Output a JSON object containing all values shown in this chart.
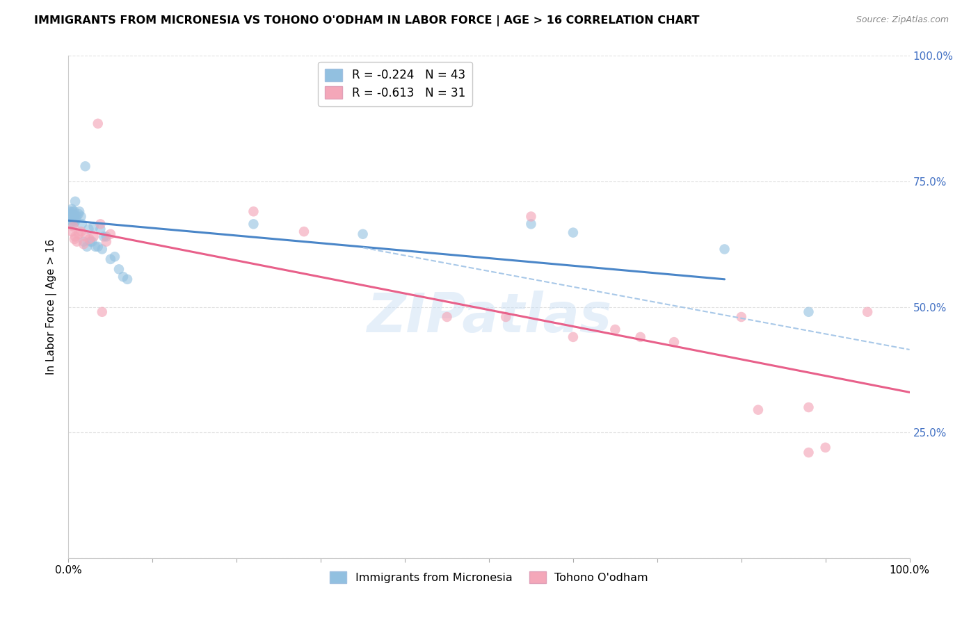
{
  "title": "IMMIGRANTS FROM MICRONESIA VS TOHONO O'ODHAM IN LABOR FORCE | AGE > 16 CORRELATION CHART",
  "source": "Source: ZipAtlas.com",
  "ylabel": "In Labor Force | Age > 16",
  "xlim": [
    0.0,
    1.0
  ],
  "ylim": [
    0.0,
    1.0
  ],
  "ytick_labels": [
    "",
    "25.0%",
    "50.0%",
    "75.0%",
    "100.0%"
  ],
  "ytick_values": [
    0.0,
    0.25,
    0.5,
    0.75,
    1.0
  ],
  "xtick_values": [
    0.0,
    0.1,
    0.2,
    0.3,
    0.4,
    0.5,
    0.6,
    0.7,
    0.8,
    0.9,
    1.0
  ],
  "blue_color": "#92c0e0",
  "pink_color": "#f4a7b9",
  "blue_line_color": "#4a86c8",
  "pink_line_color": "#e8608a",
  "dashed_line_color": "#a8c8e8",
  "legend_R_blue": "-0.224",
  "legend_N_blue": "43",
  "legend_R_pink": "-0.613",
  "legend_N_pink": "31",
  "legend_label_blue": "Immigrants from Micronesia",
  "legend_label_pink": "Tohono O'odham",
  "blue_scatter_x": [
    0.002,
    0.003,
    0.004,
    0.004,
    0.005,
    0.005,
    0.005,
    0.006,
    0.006,
    0.007,
    0.007,
    0.008,
    0.008,
    0.009,
    0.01,
    0.012,
    0.013,
    0.015,
    0.016,
    0.018,
    0.02,
    0.022,
    0.024,
    0.026,
    0.028,
    0.03,
    0.032,
    0.035,
    0.038,
    0.04,
    0.042,
    0.045,
    0.05,
    0.055,
    0.06,
    0.065,
    0.07,
    0.22,
    0.35,
    0.55,
    0.6,
    0.78,
    0.88
  ],
  "blue_scatter_y": [
    0.69,
    0.685,
    0.695,
    0.67,
    0.675,
    0.68,
    0.69,
    0.665,
    0.672,
    0.68,
    0.69,
    0.67,
    0.71,
    0.675,
    0.68,
    0.685,
    0.69,
    0.68,
    0.665,
    0.63,
    0.78,
    0.62,
    0.655,
    0.63,
    0.63,
    0.66,
    0.62,
    0.62,
    0.655,
    0.615,
    0.64,
    0.64,
    0.595,
    0.6,
    0.575,
    0.56,
    0.555,
    0.665,
    0.645,
    0.665,
    0.648,
    0.615,
    0.49
  ],
  "pink_scatter_x": [
    0.004,
    0.006,
    0.007,
    0.008,
    0.01,
    0.012,
    0.015,
    0.018,
    0.02,
    0.025,
    0.03,
    0.035,
    0.038,
    0.04,
    0.045,
    0.05,
    0.22,
    0.28,
    0.45,
    0.52,
    0.55,
    0.6,
    0.65,
    0.68,
    0.72,
    0.8,
    0.82,
    0.88,
    0.88,
    0.9,
    0.95
  ],
  "pink_scatter_y": [
    0.65,
    0.66,
    0.635,
    0.64,
    0.63,
    0.645,
    0.65,
    0.625,
    0.64,
    0.635,
    0.64,
    0.865,
    0.665,
    0.49,
    0.63,
    0.645,
    0.69,
    0.65,
    0.48,
    0.48,
    0.68,
    0.44,
    0.455,
    0.44,
    0.43,
    0.48,
    0.295,
    0.21,
    0.3,
    0.22,
    0.49
  ],
  "blue_line_x0": 0.0,
  "blue_line_x1": 0.78,
  "blue_line_y0": 0.672,
  "blue_line_y1": 0.555,
  "pink_line_x0": 0.0,
  "pink_line_x1": 1.0,
  "pink_line_y0": 0.658,
  "pink_line_y1": 0.33,
  "dashed_line_x0": 0.35,
  "dashed_line_x1": 1.0,
  "dashed_line_y0": 0.618,
  "dashed_line_y1": 0.415,
  "watermark": "ZIPatlas",
  "background_color": "#ffffff",
  "grid_color": "#e0e0e0"
}
